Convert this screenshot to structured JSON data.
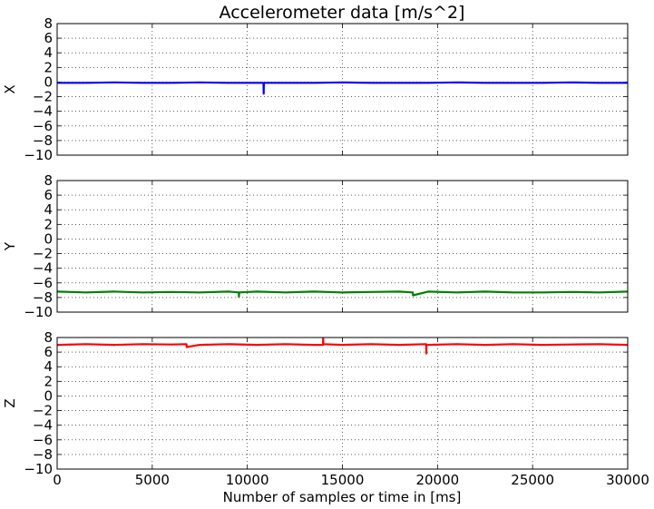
{
  "chart_data": {
    "type": "line",
    "title": "Accelerometer data [m/s^2]",
    "xlabel": "Number of samples or time in [ms]",
    "xlim": [
      0,
      30000
    ],
    "xticks": [
      0,
      5000,
      10000,
      15000,
      20000,
      25000,
      30000
    ],
    "grid": true,
    "panels": [
      {
        "ylabel": "X",
        "ylim": [
          -10,
          8
        ],
        "yticks": [
          8,
          6,
          4,
          2,
          0,
          -2,
          -4,
          -6,
          -8,
          -10
        ],
        "series": [
          {
            "color": "#0000ff",
            "x": [
              0,
              1500,
              3000,
              4500,
              6000,
              7500,
              9000,
              10500,
              10850,
              10860,
              10870,
              10880,
              11200,
              12000,
              13500,
              15000,
              16500,
              18000,
              19500,
              21000,
              22500,
              24000,
              25500,
              27000,
              28500,
              30000
            ],
            "y": [
              -0.1,
              -0.1,
              -0.05,
              -0.1,
              -0.1,
              -0.05,
              -0.1,
              -0.1,
              -0.1,
              -1.6,
              -0.3,
              -0.1,
              -0.1,
              -0.1,
              -0.1,
              -0.05,
              -0.1,
              -0.1,
              -0.1,
              -0.05,
              -0.1,
              -0.1,
              -0.1,
              -0.05,
              -0.1,
              -0.1
            ]
          }
        ]
      },
      {
        "ylabel": "Y",
        "ylim": [
          -10,
          8
        ],
        "yticks": [
          8,
          6,
          4,
          2,
          0,
          -2,
          -4,
          -6,
          -8,
          -10
        ],
        "series": [
          {
            "color": "#008000",
            "x": [
              0,
              1500,
              3000,
              4500,
              6000,
              7500,
              9000,
              9550,
              9560,
              9570,
              10500,
              12000,
              13500,
              15000,
              16500,
              18000,
              18700,
              18710,
              19500,
              21000,
              22500,
              24000,
              25500,
              27000,
              28500,
              30000
            ],
            "y": [
              -7.2,
              -7.3,
              -7.2,
              -7.3,
              -7.25,
              -7.3,
              -7.2,
              -7.3,
              -7.9,
              -7.3,
              -7.2,
              -7.3,
              -7.2,
              -7.3,
              -7.25,
              -7.2,
              -7.3,
              -7.7,
              -7.2,
              -7.3,
              -7.2,
              -7.3,
              -7.3,
              -7.25,
              -7.3,
              -7.2
            ]
          }
        ]
      },
      {
        "ylabel": "Z",
        "ylim": [
          -10,
          8
        ],
        "yticks": [
          8,
          6,
          4,
          2,
          0,
          -2,
          -4,
          -6,
          -8,
          -10
        ],
        "series": [
          {
            "color": "#ff0000",
            "x": [
              0,
              1500,
              3000,
              4500,
              6000,
              6800,
              6810,
              7500,
              9000,
              10500,
              12000,
              13500,
              13980,
              13990,
              14000,
              15000,
              16500,
              18000,
              19400,
              19410,
              19420,
              21000,
              22500,
              24000,
              25500,
              27000,
              28500,
              30000
            ],
            "y": [
              7.0,
              7.1,
              7.0,
              7.1,
              7.05,
              7.1,
              6.7,
              7.0,
              7.1,
              7.0,
              7.1,
              7.0,
              7.0,
              7.9,
              7.1,
              7.0,
              7.1,
              7.0,
              7.1,
              5.8,
              7.0,
              7.1,
              7.0,
              7.1,
              7.0,
              7.05,
              7.1,
              7.0
            ]
          }
        ]
      }
    ]
  }
}
